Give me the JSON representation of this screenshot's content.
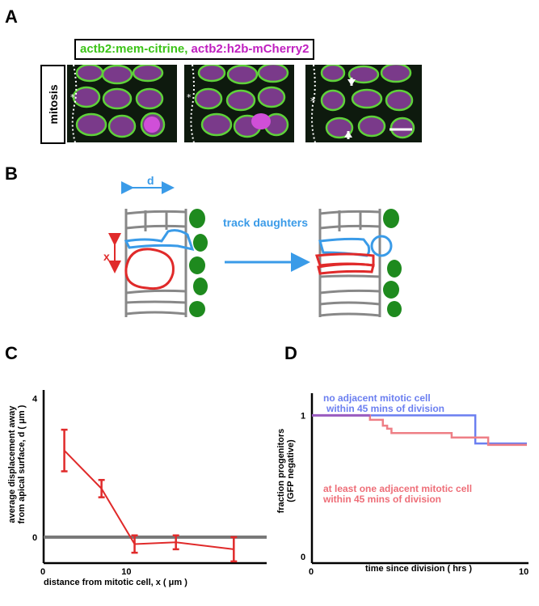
{
  "panels": {
    "a": "A",
    "b": "B",
    "c": "C",
    "d": "D"
  },
  "panel_a": {
    "legend_green": "actb2:mem-citrine,",
    "legend_magenta": "actb2:h2b-mCherry2",
    "row_label": "mitosis",
    "asterisk": "*"
  },
  "panel_b": {
    "d_label": "d",
    "x_label": "x",
    "arrow_label": "track daughters",
    "colors": {
      "blue": "#3a9be8",
      "red": "#e02a2a",
      "green": "#1e8a1e",
      "gray": "#888888"
    }
  },
  "chart_data": [
    {
      "type": "line",
      "panel": "C",
      "xlabel": "distance from mitotic cell, x ( μm )",
      "ylabel_line1": "average displacement away",
      "ylabel_line2": "from apical surface, d ( μm )",
      "ytick_top": "4",
      "ytick_zero": "0",
      "xtick_zero": "0",
      "xtick_ten": "10",
      "x": [
        2.5,
        7,
        11,
        16,
        23
      ],
      "y": [
        2.5,
        1.4,
        -0.2,
        -0.15,
        -0.35
      ],
      "err": [
        0.6,
        0.25,
        0.25,
        0.2,
        0.35
      ],
      "xlim": [
        0,
        26
      ],
      "ylim": [
        -0.75,
        4.2
      ],
      "line_color": "#e02a2a",
      "zero_line_color": "#777777"
    },
    {
      "type": "line",
      "panel": "D",
      "ylabel_line1": "fraction progenitors",
      "ylabel_line2": "(GFP negative)",
      "xlabel": "time since division ( hrs )",
      "ytick_top": "1",
      "ytick_zero": "0",
      "xtick_zero": "0",
      "xtick_ten": "10",
      "xlim": [
        0,
        10
      ],
      "ylim": [
        0,
        1.15
      ],
      "series": [
        {
          "name": "no adjacent mitotic cell within 45 mins of division",
          "label_line1": "no adjacent mitotic cell",
          "label_line2": "within 45 mins of division",
          "color": "#6b7ff0",
          "x": [
            0,
            7.6,
            7.6,
            10
          ],
          "y": [
            1,
            1,
            0.81,
            0.81
          ]
        },
        {
          "name": "at least one adjacent mitotic cell within 45 mins of division",
          "label_line1": "at least one adjacent mitotic cell",
          "label_line2": "within 45 mins of division",
          "color": "#ee7f86",
          "x": [
            0,
            2.7,
            2.7,
            3.3,
            3.3,
            3.5,
            3.5,
            3.7,
            3.7,
            6.5,
            6.5,
            8.2,
            8.2,
            10
          ],
          "y": [
            1,
            1,
            0.97,
            0.97,
            0.93,
            0.93,
            0.91,
            0.91,
            0.88,
            0.88,
            0.85,
            0.85,
            0.8,
            0.8
          ]
        }
      ],
      "shared_color": "#9a5cc0"
    }
  ]
}
